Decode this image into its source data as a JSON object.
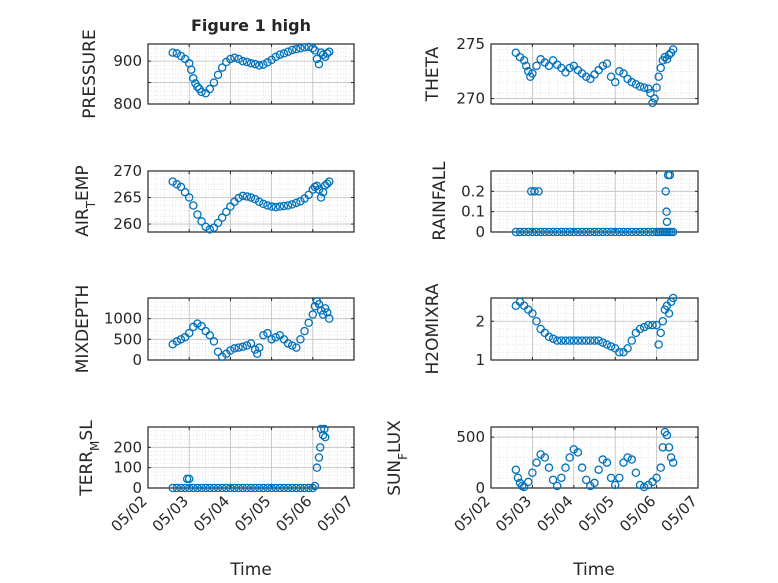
{
  "figure_title": "Figure 1 high",
  "x_axis_label": "Time",
  "x_tick_labels": [
    "05/02",
    "05/03",
    "05/04",
    "05/05",
    "05/06",
    "05/07"
  ],
  "marker_color": "#0072BD",
  "chart_data": [
    {
      "type": "scatter",
      "title": "Figure 1 high",
      "ylabel": "PRESSURE",
      "ylim": [
        800,
        940
      ],
      "yticks": [
        800,
        850,
        900
      ],
      "ytick_labels": [
        "800",
        "",
        "900"
      ],
      "grid": true,
      "x": [
        2.6,
        2.7,
        2.8,
        2.9,
        3.0,
        3.05,
        3.1,
        3.15,
        3.2,
        3.25,
        3.3,
        3.4,
        3.5,
        3.6,
        3.7,
        3.8,
        3.9,
        4.0,
        4.1,
        4.2,
        4.3,
        4.4,
        4.5,
        4.6,
        4.7,
        4.8,
        4.9,
        5.0,
        5.1,
        5.2,
        5.3,
        5.4,
        5.5,
        5.6,
        5.7,
        5.8,
        5.9,
        6.0,
        6.05,
        6.1,
        6.15,
        6.2,
        6.25,
        6.3,
        6.35,
        6.4
      ],
      "y": [
        920,
        918,
        912,
        905,
        895,
        880,
        860,
        848,
        840,
        835,
        828,
        825,
        835,
        850,
        868,
        885,
        898,
        905,
        908,
        905,
        900,
        898,
        895,
        893,
        890,
        892,
        897,
        903,
        910,
        915,
        918,
        922,
        926,
        928,
        930,
        932,
        933,
        930,
        925,
        905,
        893,
        920,
        915,
        910,
        918,
        922
      ]
    },
    {
      "type": "scatter",
      "title": "",
      "ylabel": "THETA",
      "ylim": [
        269.5,
        275
      ],
      "yticks": [
        270,
        275
      ],
      "ytick_labels": [
        "270",
        "275"
      ],
      "grid": true,
      "x": [
        2.6,
        2.7,
        2.8,
        2.85,
        2.9,
        2.95,
        3.0,
        3.1,
        3.2,
        3.3,
        3.4,
        3.5,
        3.6,
        3.7,
        3.8,
        3.9,
        4.0,
        4.1,
        4.2,
        4.3,
        4.4,
        4.5,
        4.6,
        4.7,
        4.8,
        4.9,
        5.0,
        5.1,
        5.2,
        5.3,
        5.4,
        5.5,
        5.6,
        5.7,
        5.8,
        5.85,
        5.9,
        5.95,
        6.0,
        6.05,
        6.1,
        6.15,
        6.2,
        6.25,
        6.3,
        6.35,
        6.4
      ],
      "y": [
        274.2,
        273.8,
        273.5,
        273.0,
        272.5,
        272.0,
        272.3,
        273.0,
        273.6,
        273.3,
        273.0,
        273.5,
        273.1,
        272.8,
        272.4,
        272.8,
        273.0,
        272.6,
        272.3,
        272.0,
        271.8,
        272.2,
        272.6,
        273.0,
        273.2,
        272.0,
        271.5,
        272.5,
        272.3,
        271.8,
        271.5,
        271.3,
        271.1,
        271.0,
        270.9,
        270.5,
        269.6,
        270.0,
        271.0,
        272.0,
        272.8,
        273.5,
        273.8,
        273.6,
        274.0,
        274.2,
        274.5
      ]
    },
    {
      "type": "scatter",
      "title": "",
      "ylabel": "AIR_TEMP",
      "ylim": [
        258.5,
        270
      ],
      "yticks": [
        260,
        265,
        270
      ],
      "ytick_labels": [
        "260",
        "265",
        "270"
      ],
      "grid": true,
      "x": [
        2.6,
        2.7,
        2.8,
        2.9,
        3.0,
        3.1,
        3.2,
        3.3,
        3.4,
        3.5,
        3.6,
        3.7,
        3.8,
        3.9,
        4.0,
        4.1,
        4.2,
        4.3,
        4.4,
        4.5,
        4.6,
        4.7,
        4.8,
        4.9,
        5.0,
        5.1,
        5.2,
        5.3,
        5.4,
        5.5,
        5.6,
        5.7,
        5.8,
        5.9,
        6.0,
        6.05,
        6.1,
        6.15,
        6.2,
        6.25,
        6.3,
        6.35,
        6.4
      ],
      "y": [
        268.0,
        267.5,
        267.0,
        266.0,
        265.0,
        263.5,
        261.8,
        260.5,
        259.5,
        259.0,
        259.3,
        260.2,
        261.2,
        262.3,
        263.3,
        264.2,
        264.9,
        265.3,
        265.2,
        265.0,
        264.7,
        264.2,
        263.8,
        263.5,
        263.3,
        263.2,
        263.3,
        263.4,
        263.5,
        263.7,
        264.0,
        264.3,
        264.8,
        265.5,
        266.5,
        267.0,
        267.2,
        266.5,
        265.0,
        266.0,
        267.3,
        267.6,
        268.0
      ]
    },
    {
      "type": "scatter",
      "title": "",
      "ylabel": "RAINFALL",
      "ylim": [
        0,
        0.3
      ],
      "yticks": [
        0,
        0.1,
        0.2
      ],
      "ytick_labels": [
        "0",
        "0.1",
        "0.2"
      ],
      "grid": true,
      "x": [
        2.6,
        2.7,
        2.8,
        2.9,
        3.0,
        3.1,
        3.2,
        3.3,
        3.4,
        3.5,
        3.6,
        3.7,
        3.8,
        3.9,
        4.0,
        4.1,
        4.2,
        4.3,
        4.4,
        4.5,
        4.6,
        4.7,
        4.8,
        4.9,
        5.0,
        5.1,
        5.2,
        5.3,
        5.4,
        5.5,
        5.6,
        5.7,
        5.8,
        5.9,
        6.0,
        6.05,
        6.1,
        6.15,
        6.2,
        6.25,
        6.3,
        6.35,
        6.4,
        2.97,
        3.05,
        3.15,
        6.22,
        6.24,
        6.25,
        6.28,
        6.32
      ],
      "y": [
        0,
        0,
        0,
        0,
        0,
        0,
        0,
        0,
        0,
        0,
        0,
        0,
        0,
        0,
        0,
        0,
        0,
        0,
        0,
        0,
        0,
        0,
        0,
        0,
        0,
        0,
        0,
        0,
        0,
        0,
        0,
        0,
        0,
        0,
        0,
        0,
        0,
        0,
        0,
        0,
        0,
        0,
        0,
        0.2,
        0.2,
        0.2,
        0.2,
        0.1,
        0.05,
        0.28,
        0.28
      ]
    },
    {
      "type": "scatter",
      "title": "",
      "ylabel": "MIXDEPTH",
      "ylim": [
        0,
        1500
      ],
      "yticks": [
        0,
        500,
        1000
      ],
      "ytick_labels": [
        "0",
        "500",
        "1000"
      ],
      "grid": true,
      "x": [
        2.6,
        2.7,
        2.8,
        2.9,
        3.0,
        3.1,
        3.2,
        3.3,
        3.4,
        3.5,
        3.6,
        3.7,
        3.8,
        3.9,
        4.0,
        4.1,
        4.2,
        4.3,
        4.4,
        4.5,
        4.6,
        4.65,
        4.7,
        4.8,
        4.9,
        5.0,
        5.1,
        5.2,
        5.3,
        5.4,
        5.5,
        5.6,
        5.7,
        5.8,
        5.9,
        6.0,
        6.05,
        6.1,
        6.15,
        6.2,
        6.25,
        6.3,
        6.35,
        6.4
      ],
      "y": [
        380,
        450,
        500,
        550,
        650,
        800,
        880,
        820,
        700,
        600,
        450,
        200,
        80,
        150,
        230,
        280,
        300,
        320,
        350,
        400,
        250,
        150,
        300,
        600,
        650,
        500,
        550,
        600,
        500,
        400,
        350,
        300,
        500,
        700,
        900,
        1100,
        1300,
        1420,
        1350,
        1200,
        1100,
        1250,
        1150,
        1000
      ]
    },
    {
      "type": "scatter",
      "title": "",
      "ylabel": "H2OMIXRA",
      "ylim": [
        1,
        2.6
      ],
      "yticks": [
        1,
        2
      ],
      "ytick_labels": [
        "1",
        "2"
      ],
      "grid": true,
      "x": [
        2.6,
        2.7,
        2.8,
        2.9,
        3.0,
        3.1,
        3.2,
        3.3,
        3.4,
        3.5,
        3.6,
        3.7,
        3.8,
        3.9,
        4.0,
        4.1,
        4.2,
        4.3,
        4.4,
        4.5,
        4.6,
        4.7,
        4.8,
        4.9,
        5.0,
        5.1,
        5.2,
        5.3,
        5.4,
        5.5,
        5.6,
        5.7,
        5.8,
        5.9,
        6.0,
        6.05,
        6.1,
        6.15,
        6.2,
        6.25,
        6.3,
        6.35,
        6.4
      ],
      "y": [
        2.4,
        2.5,
        2.4,
        2.3,
        2.2,
        2.0,
        1.8,
        1.7,
        1.6,
        1.55,
        1.5,
        1.5,
        1.5,
        1.5,
        1.5,
        1.5,
        1.5,
        1.5,
        1.5,
        1.5,
        1.5,
        1.45,
        1.4,
        1.35,
        1.3,
        1.2,
        1.2,
        1.3,
        1.5,
        1.7,
        1.8,
        1.85,
        1.9,
        1.9,
        1.9,
        1.4,
        1.7,
        2.0,
        2.3,
        2.4,
        2.2,
        2.5,
        2.6
      ]
    },
    {
      "type": "scatter",
      "title": "",
      "ylabel": "TERR_MSL",
      "ylim": [
        0,
        300
      ],
      "yticks": [
        0,
        100,
        200
      ],
      "ytick_labels": [
        "0",
        "100",
        "200"
      ],
      "grid": true,
      "x": [
        2.6,
        2.7,
        2.8,
        2.9,
        3.0,
        3.1,
        3.2,
        3.3,
        3.4,
        3.5,
        3.6,
        3.7,
        3.8,
        3.9,
        4.0,
        4.1,
        4.2,
        4.3,
        4.4,
        4.5,
        4.6,
        4.7,
        4.8,
        4.9,
        5.0,
        5.1,
        5.2,
        5.3,
        5.4,
        5.5,
        5.6,
        5.7,
        5.8,
        5.9,
        6.0,
        2.95,
        3.0,
        6.05,
        6.1,
        6.15,
        6.18,
        6.2,
        6.25,
        6.28,
        6.3
      ],
      "y": [
        0,
        0,
        0,
        0,
        0,
        0,
        0,
        0,
        0,
        0,
        0,
        0,
        0,
        0,
        0,
        0,
        0,
        0,
        0,
        0,
        0,
        0,
        0,
        0,
        0,
        0,
        0,
        0,
        0,
        0,
        0,
        0,
        0,
        0,
        0,
        45,
        45,
        10,
        100,
        150,
        200,
        290,
        260,
        290,
        250
      ]
    },
    {
      "type": "scatter",
      "title": "",
      "ylabel": "SUN_FLUX",
      "ylim": [
        0,
        600
      ],
      "yticks": [
        0,
        500
      ],
      "ytick_labels": [
        "0",
        "500"
      ],
      "grid": true,
      "x": [
        2.6,
        2.65,
        2.7,
        2.75,
        2.8,
        2.9,
        3.0,
        3.1,
        3.2,
        3.3,
        3.4,
        3.5,
        3.6,
        3.7,
        3.8,
        3.9,
        4.0,
        4.1,
        4.2,
        4.3,
        4.4,
        4.5,
        4.6,
        4.7,
        4.8,
        4.9,
        5.0,
        5.1,
        5.2,
        5.3,
        5.4,
        5.5,
        5.6,
        5.7,
        5.8,
        5.9,
        6.0,
        6.1,
        6.15,
        6.2,
        6.25,
        6.3,
        6.35,
        6.4
      ],
      "y": [
        180,
        100,
        50,
        20,
        10,
        60,
        150,
        250,
        330,
        300,
        200,
        80,
        20,
        100,
        200,
        300,
        380,
        350,
        200,
        80,
        20,
        50,
        180,
        280,
        250,
        100,
        30,
        100,
        250,
        300,
        280,
        150,
        30,
        10,
        30,
        60,
        100,
        200,
        400,
        550,
        520,
        400,
        300,
        250
      ]
    }
  ]
}
